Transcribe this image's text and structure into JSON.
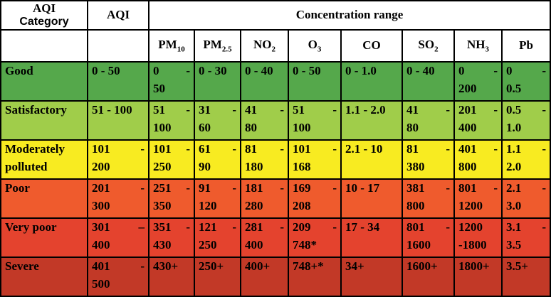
{
  "table": {
    "header": {
      "category_line1": "AQI",
      "category_line2": "Category",
      "aqi": "AQI",
      "concentration": "Concentration range",
      "pollutants": [
        {
          "base": "PM",
          "sub": "10"
        },
        {
          "base": "PM",
          "sub": "2.5"
        },
        {
          "base": "NO",
          "sub": "2"
        },
        {
          "base": "O",
          "sub": "3"
        },
        {
          "base": "CO",
          "sub": ""
        },
        {
          "base": "SO",
          "sub": "2"
        },
        {
          "base": "NH",
          "sub": "3"
        },
        {
          "base": "Pb",
          "sub": ""
        }
      ]
    },
    "rows": [
      {
        "category": "Good",
        "color": "#55A84B",
        "aqi": "0 - 50",
        "values": [
          "0 -\n50",
          "0 - 30",
          "0 - 40",
          "0 - 50",
          "0 - 1.0",
          "0 - 40",
          "0 -\n200",
          "0 -\n0.5"
        ]
      },
      {
        "category": "Satisfactory",
        "color": "#A0CD4A",
        "aqi": "51 - 100",
        "values": [
          "51 -\n100",
          "31 -\n60",
          "41 -\n80",
          "51 -\n100",
          "1.1 - 2.0",
          "41 -\n80",
          "201 -\n400",
          "0.5 -\n1.0"
        ]
      },
      {
        "category": "Moderately polluted",
        "color": "#F8EB21",
        "aqi": "101 -\n200",
        "values": [
          "101 -\n250",
          "61 -\n90",
          "81 -\n180",
          "101 -\n168",
          "2.1 - 10",
          "81 -\n380",
          "401 -\n800",
          "1.1 -\n2.0"
        ]
      },
      {
        "category": "Poor",
        "color": "#EF5B2D",
        "aqi": "201 -\n300",
        "values": [
          "251 -\n350",
          "91 -\n120",
          "181 -\n280",
          "169 -\n208",
          "10 - 17",
          "381 -\n800",
          "801 -\n1200",
          "2.1 -\n3.0"
        ]
      },
      {
        "category": "Very poor",
        "color": "#E4432E",
        "aqi": "301 –\n400",
        "values": [
          "351 -\n430",
          "121 -\n250",
          "281 -\n400",
          "209 -\n748*",
          "17 - 34",
          "801 -\n1600",
          "1200\n-1800",
          "3.1 -\n3.5"
        ]
      },
      {
        "category": "Severe",
        "color": "#C23927",
        "aqi": "401 -\n500",
        "values": [
          "430+",
          "250+",
          "400+",
          "748+*",
          "34+",
          "1600+",
          "1800+",
          "3.5+"
        ]
      }
    ]
  }
}
